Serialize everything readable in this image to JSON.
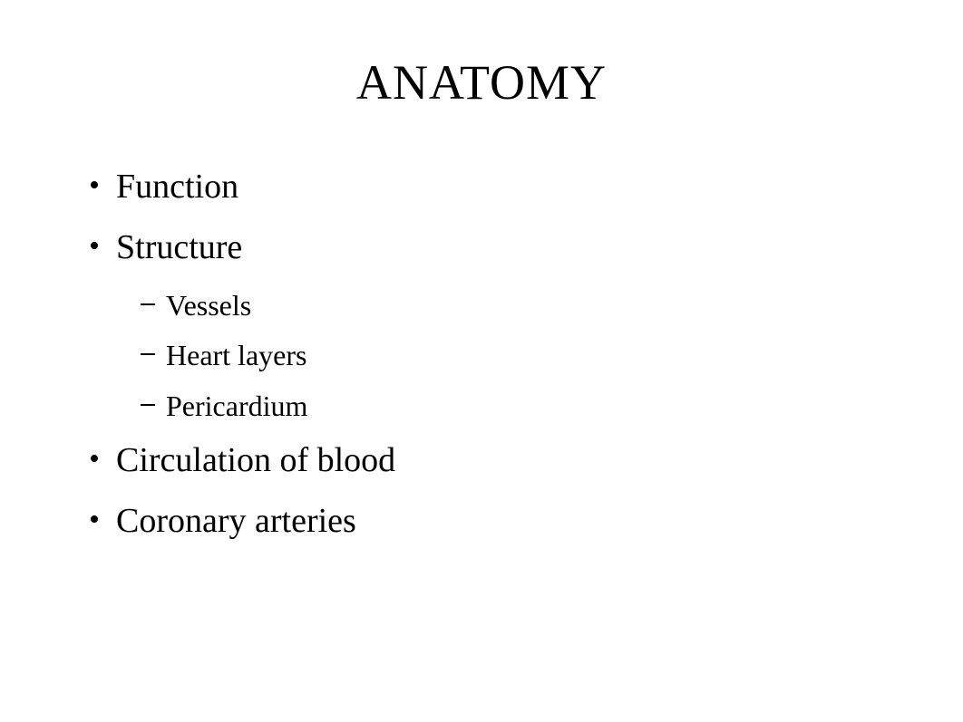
{
  "slide": {
    "title": "ANATOMY",
    "title_fontsize": 54,
    "background_color": "#ffffff",
    "text_color": "#000000",
    "font_family": "Times New Roman",
    "bullets": [
      {
        "text": "Function",
        "fontsize": 38
      },
      {
        "text": "Structure",
        "fontsize": 38
      },
      {
        "text": "Circulation of blood",
        "fontsize": 38
      },
      {
        "text": "Coronary arteries",
        "fontsize": 38
      }
    ],
    "sub_bullets": [
      {
        "text": "Vessels",
        "fontsize": 32
      },
      {
        "text": "Heart layers",
        "fontsize": 32
      },
      {
        "text": "Pericardium",
        "fontsize": 32
      }
    ],
    "bullet_color": "#000000",
    "bullet_size": 8,
    "dash_width": 16,
    "dash_height": 2
  }
}
